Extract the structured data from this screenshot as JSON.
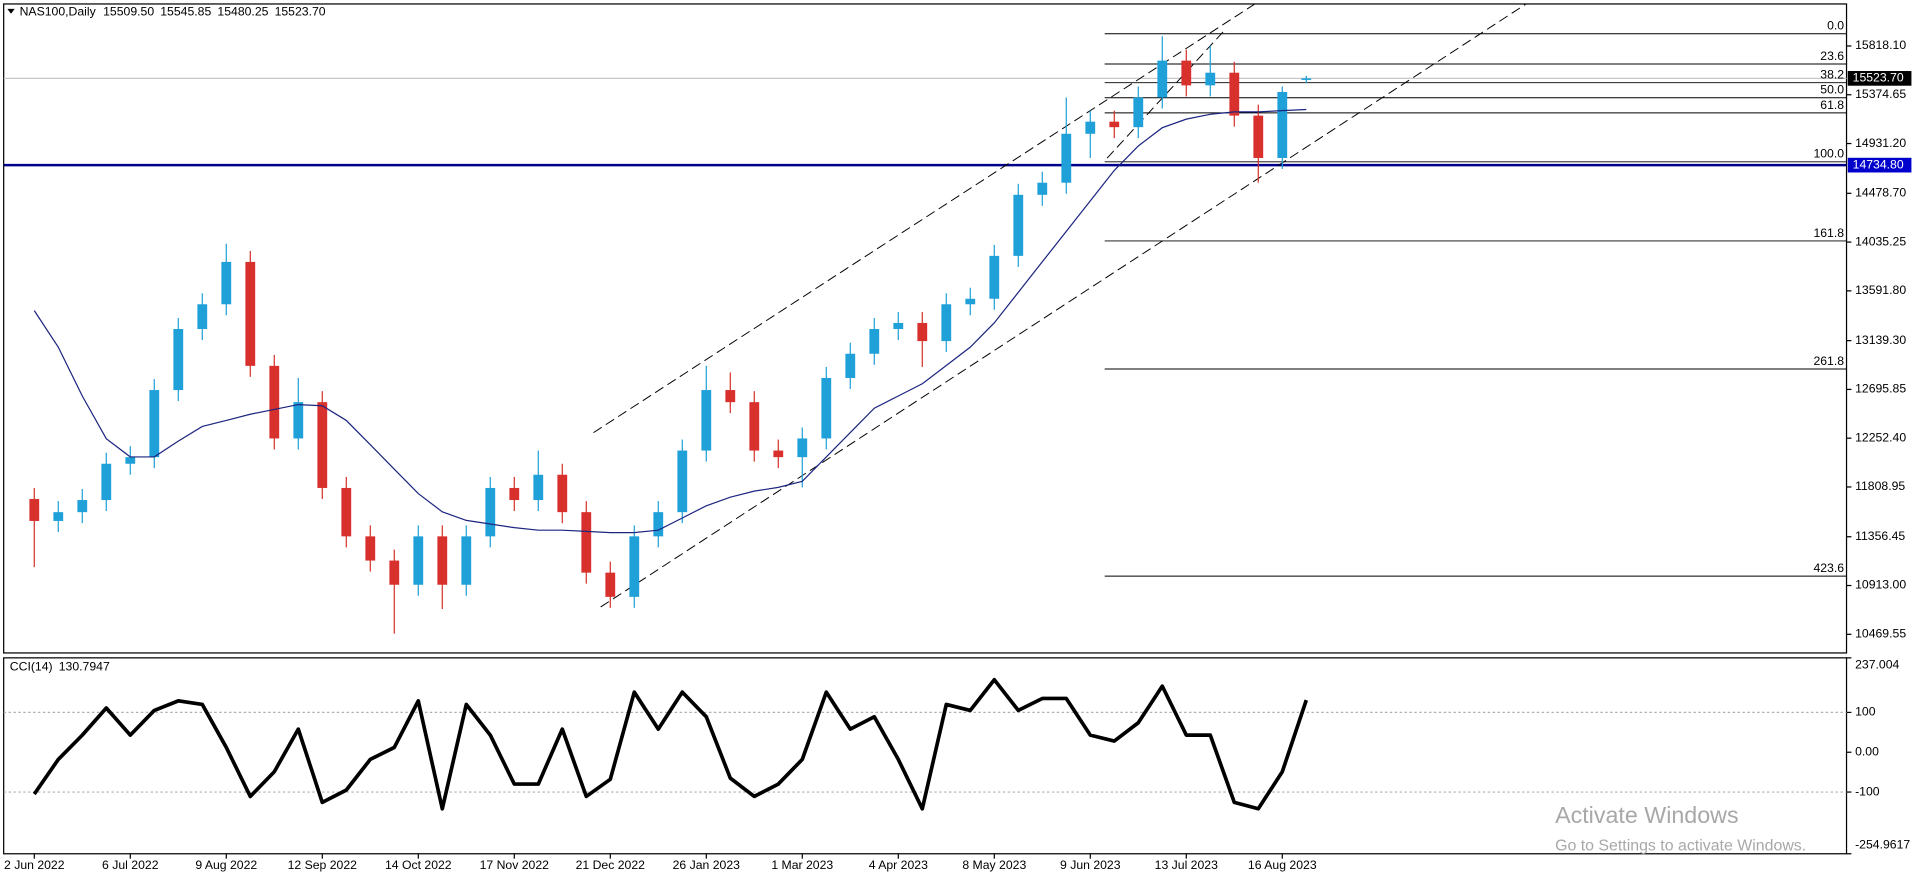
{
  "chart_data": [
    {
      "type": "candlestick",
      "title": "NAS100,Daily",
      "ohlc_labels": [
        "15509.50",
        "15545.85",
        "15480.25",
        "15523.70"
      ],
      "categories": [
        "2 Jun 2022",
        null,
        null,
        null,
        "6 Jul 2022",
        null,
        null,
        null,
        "9 Aug 2022",
        null,
        null,
        null,
        "12 Sep 2022",
        null,
        null,
        null,
        "14 Oct 2022",
        null,
        null,
        null,
        "17 Nov 2022",
        null,
        null,
        null,
        "21 Dec 2022",
        null,
        null,
        null,
        "26 Jan 2023",
        null,
        null,
        null,
        "1 Mar 2023",
        null,
        null,
        null,
        "4 Apr 2023",
        null,
        null,
        null,
        "8 May 2023",
        null,
        null,
        null,
        "9 Jun 2023",
        null,
        null,
        null,
        "13 Jul 2023",
        null,
        null,
        null,
        "16 Aug 2023",
        null
      ],
      "open": [
        11700,
        11500,
        11580,
        11690,
        12020,
        12080,
        12690,
        13245,
        13470,
        13855,
        12910,
        12250,
        12580,
        11800,
        11360,
        11140,
        10920,
        11360,
        10920,
        11360,
        11800,
        11690,
        11920,
        11580,
        11030,
        10810,
        11360,
        11580,
        12140,
        12690,
        12580,
        12140,
        12080,
        12250,
        12800,
        13020,
        13245,
        13300,
        13135,
        13470,
        13520,
        13910,
        14465,
        14575,
        15020,
        15130,
        15080,
        15350,
        15685,
        15460,
        15575,
        15185,
        14800,
        15509.5
      ],
      "high": [
        11800,
        11680,
        11790,
        12120,
        12180,
        12790,
        13345,
        13570,
        14020,
        13955,
        13010,
        12800,
        12680,
        11900,
        11460,
        11240,
        11460,
        11460,
        11460,
        11900,
        11900,
        12140,
        12020,
        11680,
        11130,
        11460,
        11680,
        12240,
        12910,
        12850,
        12680,
        12240,
        12350,
        12900,
        13120,
        13345,
        13400,
        13400,
        13570,
        13620,
        14010,
        14565,
        14675,
        15350,
        15230,
        15230,
        15450,
        15907,
        15785,
        15820,
        15675,
        15285,
        15450,
        15545.85
      ],
      "low": [
        11080,
        11400,
        11480,
        11590,
        11920,
        11980,
        12590,
        13145,
        13370,
        12810,
        12150,
        12150,
        11700,
        11260,
        11040,
        10475,
        10820,
        10700,
        10820,
        11260,
        11590,
        11590,
        11480,
        10930,
        10710,
        10710,
        11260,
        11480,
        12040,
        12480,
        12040,
        11980,
        11805,
        12150,
        12700,
        12920,
        13145,
        12900,
        13035,
        13370,
        13420,
        13810,
        14365,
        14475,
        14800,
        14980,
        14980,
        15250,
        15360,
        15360,
        15085,
        14576,
        14700,
        15480.25
      ],
      "close": [
        11500,
        11580,
        11690,
        12020,
        12080,
        12690,
        13245,
        13470,
        13855,
        12910,
        12250,
        12580,
        11800,
        11360,
        11140,
        10920,
        11360,
        10920,
        11360,
        11800,
        11690,
        11920,
        11580,
        11030,
        10810,
        11360,
        11580,
        12140,
        12690,
        12580,
        12140,
        12080,
        12250,
        12800,
        13020,
        13245,
        13300,
        13135,
        13470,
        13520,
        13910,
        14465,
        14575,
        15020,
        15130,
        15080,
        15350,
        15685,
        15460,
        15575,
        15185,
        14800,
        15400,
        15523.7
      ],
      "up_color": "#1fa0d8",
      "down_color": "#d8302c",
      "moving_average": {
        "color": "#1c2580",
        "values": [
          13412,
          13080,
          12636,
          12248,
          12082,
          12082,
          12226,
          12359,
          12414,
          12470,
          12514,
          12558,
          12547,
          12414,
          12193,
          11971,
          11749,
          11583,
          11505,
          11472,
          11439,
          11416,
          11416,
          11405,
          11394,
          11394,
          11416,
          11527,
          11638,
          11716,
          11771,
          11805,
          11860,
          12082,
          12304,
          12525,
          12636,
          12747,
          12913,
          13080,
          13301,
          13578,
          13856,
          14133,
          14410,
          14687,
          14909,
          15075,
          15153,
          15197,
          15219,
          15219,
          15230,
          15241
        ]
      },
      "ylim": [
        10300,
        16200
      ],
      "yticks": [
        {
          "value": 15818.1,
          "label": "15818.10"
        },
        15374.65,
        {
          "value": 14931.2,
          "label": "14931.20"
        },
        {
          "value": 14478.7,
          "label": "14478.70"
        },
        14035.25,
        {
          "value": 13591.8,
          "label": "13591.80"
        },
        {
          "value": 13139.3,
          "label": "13139.30"
        },
        12695.85,
        {
          "value": 12252.4,
          "label": "12252.40"
        },
        11808.95,
        11356.45,
        {
          "value": 10913,
          "label": "10913.00"
        },
        10469.55
      ],
      "hlines": [
        {
          "value": 15523.7,
          "label": "15523.70",
          "color": "#c8c8c8",
          "label_color": "#000000"
        },
        {
          "value": 14734.8,
          "label": "14734.80",
          "color": "#00008b",
          "label_color": "#0000cc"
        }
      ],
      "fibonacci": {
        "high": 15929,
        "low": 14765,
        "start": 44.6,
        "color": "#000000",
        "levels": [
          {
            "value": 0,
            "label": "0.0"
          },
          23.6,
          38.2,
          {
            "value": 50,
            "label": "50.0"
          },
          61.8,
          {
            "value": 100,
            "label": "100.0"
          },
          161.8,
          261.8,
          423.6
        ]
      },
      "trendlines": [
        {
          "x": [
            23.3,
            50.9
          ],
          "y": [
            12303,
            16206
          ]
        },
        {
          "x": [
            23.6,
            62.2
          ],
          "y": [
            10718,
            16206
          ]
        },
        {
          "x": [
            44.7,
            49.6
          ],
          "y": [
            14798,
            15962
          ]
        }
      ]
    },
    {
      "type": "line",
      "title": "CCI(14)",
      "value_label": "130.7947",
      "color": "#000000",
      "values": [
        -105,
        -18,
        43,
        111,
        43,
        105,
        129,
        120,
        12,
        -111,
        -49,
        58,
        -126,
        -95,
        -18,
        12,
        129,
        -142,
        120,
        43,
        -80,
        -80,
        58,
        -111,
        -68,
        151,
        58,
        151,
        89,
        -65,
        -111,
        -80,
        -18,
        151,
        58,
        89,
        -18,
        -142,
        120,
        105,
        182,
        105,
        135,
        135,
        43,
        28,
        74,
        166,
        43,
        43,
        -126,
        -142,
        -49,
        130.7947
      ],
      "ylim": [
        -254.9617,
        237.004
      ],
      "yticks": [
        237.004,
        100,
        {
          "value": 0,
          "label": "0.00"
        },
        -100,
        -254.9617
      ],
      "levels": [
        100,
        -100
      ]
    }
  ],
  "watermark": {
    "title": "Activate Windows",
    "subtitle": "Go to Settings to activate Windows."
  }
}
